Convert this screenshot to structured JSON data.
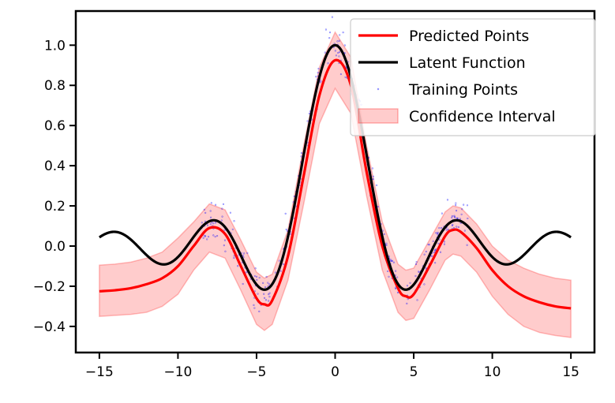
{
  "chart_data": {
    "type": "line",
    "title": "",
    "xlabel": "",
    "ylabel": "",
    "xlim": [
      -16.5,
      16.5
    ],
    "ylim": [
      -0.53,
      1.17
    ],
    "xticks": [
      -15,
      -10,
      -5,
      0,
      5,
      10,
      15
    ],
    "xtick_labels": [
      "−15",
      "−10",
      "−5",
      "0",
      "5",
      "10",
      "15"
    ],
    "yticks": [
      -0.4,
      -0.2,
      0.0,
      0.2,
      0.4,
      0.6,
      0.8,
      1.0
    ],
    "ytick_labels": [
      "−0.4",
      "−0.2",
      "0.0",
      "0.2",
      "0.4",
      "0.6",
      "0.8",
      "1.0"
    ],
    "grid": false,
    "legend_position": "top-right",
    "series": [
      {
        "name": "Predicted Points",
        "color": "#ff0000",
        "x": [
          -15,
          -14,
          -13,
          -12,
          -11,
          -10,
          -9,
          -8,
          -7,
          -6,
          -5,
          -4.5,
          -4,
          -3,
          -2,
          -1,
          0,
          1,
          2,
          3,
          4,
          4.5,
          5,
          6,
          7,
          7.5,
          8,
          9,
          10,
          11,
          12,
          13,
          14,
          15
        ],
        "y": [
          -0.225,
          -0.22,
          -0.21,
          -0.19,
          -0.16,
          -0.1,
          0.0,
          0.09,
          0.06,
          -0.1,
          -0.26,
          -0.29,
          -0.27,
          -0.05,
          0.35,
          0.75,
          0.925,
          0.8,
          0.37,
          0.0,
          -0.21,
          -0.25,
          -0.24,
          -0.1,
          0.05,
          0.08,
          0.07,
          -0.01,
          -0.12,
          -0.2,
          -0.25,
          -0.28,
          -0.3,
          -0.31
        ]
      },
      {
        "name": "Latent Function",
        "color": "#000000",
        "function": "sinc(x/pi)"
      },
      {
        "name": "Training Points",
        "color": "#0000ff",
        "marker": "dot",
        "x_range": [
          -8.5,
          8.5
        ],
        "noise_level": 0.05
      },
      {
        "name": "Confidence Interval",
        "color": "#ff0000",
        "fill_alpha": 0.2,
        "x": [
          -15,
          -14,
          -13,
          -12,
          -11,
          -10,
          -9,
          -8,
          -7,
          -6,
          -5,
          -4.5,
          -4,
          -3,
          -2,
          -1,
          0,
          1,
          2,
          3,
          4,
          4.5,
          5,
          6,
          7,
          7.5,
          8,
          9,
          10,
          11,
          12,
          13,
          14,
          15
        ],
        "lower": [
          -0.35,
          -0.345,
          -0.34,
          -0.33,
          -0.3,
          -0.24,
          -0.12,
          -0.03,
          -0.06,
          -0.22,
          -0.39,
          -0.42,
          -0.39,
          -0.17,
          0.21,
          0.61,
          0.785,
          0.66,
          0.25,
          -0.12,
          -0.33,
          -0.37,
          -0.36,
          -0.22,
          -0.07,
          -0.04,
          -0.05,
          -0.13,
          -0.25,
          -0.34,
          -0.4,
          -0.43,
          -0.445,
          -0.455
        ],
        "upper": [
          -0.095,
          -0.09,
          -0.08,
          -0.06,
          -0.03,
          0.04,
          0.12,
          0.21,
          0.18,
          0.03,
          -0.13,
          -0.16,
          -0.14,
          0.08,
          0.5,
          0.89,
          1.065,
          0.94,
          0.5,
          0.12,
          -0.09,
          -0.12,
          -0.11,
          0.03,
          0.17,
          0.2,
          0.19,
          0.11,
          0.0,
          -0.07,
          -0.11,
          -0.14,
          -0.16,
          -0.17
        ]
      }
    ],
    "legend": [
      {
        "label": "Predicted Points",
        "kind": "line",
        "color": "#ff0000"
      },
      {
        "label": "Latent Function",
        "kind": "line",
        "color": "#000000"
      },
      {
        "label": "Training Points",
        "kind": "dot",
        "color": "#0000ff"
      },
      {
        "label": "Confidence Interval",
        "kind": "patch",
        "color": "#ff0000"
      }
    ]
  }
}
